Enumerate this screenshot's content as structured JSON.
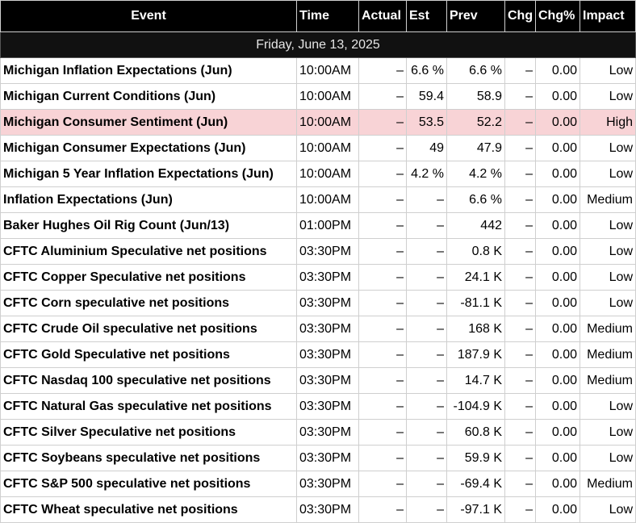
{
  "columns": {
    "event": "Event",
    "time": "Time",
    "actual": "Actual",
    "est": "Est",
    "prev": "Prev",
    "chg": "Chg",
    "chg_pct": "Chg%",
    "impact": "Impact"
  },
  "date_label": "Friday, June 13, 2025",
  "events": [
    {
      "event": "Michigan Inflation Expectations (Jun)",
      "time": "10:00AM",
      "actual": "–",
      "est": "6.6 %",
      "prev": "6.6 %",
      "chg": "–",
      "chg_pct": "0.00",
      "impact": "Low"
    },
    {
      "event": "Michigan Current Conditions (Jun)",
      "time": "10:00AM",
      "actual": "–",
      "est": "59.4",
      "prev": "58.9",
      "chg": "–",
      "chg_pct": "0.00",
      "impact": "Low"
    },
    {
      "event": "Michigan Consumer Sentiment (Jun)",
      "time": "10:00AM",
      "actual": "–",
      "est": "53.5",
      "prev": "52.2",
      "chg": "–",
      "chg_pct": "0.00",
      "impact": "High"
    },
    {
      "event": "Michigan Consumer Expectations (Jun)",
      "time": "10:00AM",
      "actual": "–",
      "est": "49",
      "prev": "47.9",
      "chg": "–",
      "chg_pct": "0.00",
      "impact": "Low"
    },
    {
      "event": "Michigan 5 Year Inflation Expectations (Jun)",
      "time": "10:00AM",
      "actual": "–",
      "est": "4.2 %",
      "prev": "4.2 %",
      "chg": "–",
      "chg_pct": "0.00",
      "impact": "Low"
    },
    {
      "event": "Inflation Expectations (Jun)",
      "time": "10:00AM",
      "actual": "–",
      "est": "–",
      "prev": "6.6 %",
      "chg": "–",
      "chg_pct": "0.00",
      "impact": "Medium"
    },
    {
      "event": "Baker Hughes Oil Rig Count (Jun/13)",
      "time": "01:00PM",
      "actual": "–",
      "est": "–",
      "prev": "442",
      "chg": "–",
      "chg_pct": "0.00",
      "impact": "Low"
    },
    {
      "event": "CFTC Aluminium Speculative net positions",
      "time": "03:30PM",
      "actual": "–",
      "est": "–",
      "prev": "0.8 K",
      "chg": "–",
      "chg_pct": "0.00",
      "impact": "Low"
    },
    {
      "event": "CFTC Copper Speculative net positions",
      "time": "03:30PM",
      "actual": "–",
      "est": "–",
      "prev": "24.1 K",
      "chg": "–",
      "chg_pct": "0.00",
      "impact": "Low"
    },
    {
      "event": "CFTC Corn speculative net positions",
      "time": "03:30PM",
      "actual": "–",
      "est": "–",
      "prev": "-81.1 K",
      "chg": "–",
      "chg_pct": "0.00",
      "impact": "Low"
    },
    {
      "event": "CFTC Crude Oil speculative net positions",
      "time": "03:30PM",
      "actual": "–",
      "est": "–",
      "prev": "168 K",
      "chg": "–",
      "chg_pct": "0.00",
      "impact": "Medium"
    },
    {
      "event": "CFTC Gold Speculative net positions",
      "time": "03:30PM",
      "actual": "–",
      "est": "–",
      "prev": "187.9 K",
      "chg": "–",
      "chg_pct": "0.00",
      "impact": "Medium"
    },
    {
      "event": "CFTC Nasdaq 100 speculative net positions",
      "time": "03:30PM",
      "actual": "–",
      "est": "–",
      "prev": "14.7 K",
      "chg": "–",
      "chg_pct": "0.00",
      "impact": "Medium"
    },
    {
      "event": "CFTC Natural Gas speculative net positions",
      "time": "03:30PM",
      "actual": "–",
      "est": "–",
      "prev": "-104.9 K",
      "chg": "–",
      "chg_pct": "0.00",
      "impact": "Low"
    },
    {
      "event": "CFTC Silver Speculative net positions",
      "time": "03:30PM",
      "actual": "–",
      "est": "–",
      "prev": "60.8 K",
      "chg": "–",
      "chg_pct": "0.00",
      "impact": "Low"
    },
    {
      "event": "CFTC Soybeans speculative net positions",
      "time": "03:30PM",
      "actual": "–",
      "est": "–",
      "prev": "59.9 K",
      "chg": "–",
      "chg_pct": "0.00",
      "impact": "Low"
    },
    {
      "event": "CFTC S&P 500 speculative net positions",
      "time": "03:30PM",
      "actual": "–",
      "est": "–",
      "prev": "-69.4 K",
      "chg": "–",
      "chg_pct": "0.00",
      "impact": "Medium"
    },
    {
      "event": "CFTC Wheat speculative net positions",
      "time": "03:30PM",
      "actual": "–",
      "est": "–",
      "prev": "-97.1 K",
      "chg": "–",
      "chg_pct": "0.00",
      "impact": "Low"
    }
  ],
  "colors": {
    "header_bg": "#000000",
    "high_impact_row": "#f8d3d6"
  }
}
